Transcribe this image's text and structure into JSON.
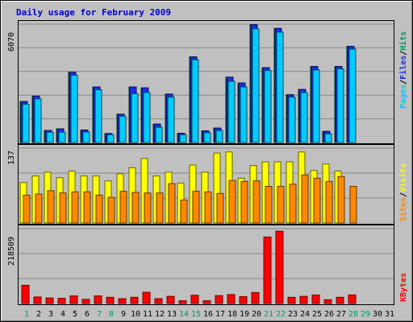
{
  "chart_data": [
    {
      "type": "bar",
      "title": "Daily usage for February 2009",
      "categories": [
        "1",
        "2",
        "3",
        "4",
        "5",
        "6",
        "7",
        "8",
        "9",
        "10",
        "11",
        "12",
        "13",
        "14",
        "15",
        "16",
        "17",
        "18",
        "19",
        "20",
        "21",
        "22",
        "23",
        "24",
        "25",
        "26",
        "27",
        "28",
        "29",
        "30",
        "31"
      ],
      "weekend_days": [
        "1",
        "7",
        "8",
        "14",
        "15",
        "21",
        "22",
        "28",
        "29"
      ],
      "y_max_label": "6070",
      "ymax": 6070,
      "legend": [
        {
          "text": "Pages",
          "color": "#00ccff"
        },
        {
          "text": "Files",
          "color": "#1a2ee6"
        },
        {
          "text": "Hits",
          "color": "#009966"
        }
      ],
      "series": [
        {
          "name": "Hits",
          "color": "#009966",
          "values": [
            2100,
            2380,
            620,
            700,
            3600,
            640,
            2850,
            460,
            1450,
            2850,
            2800,
            940,
            2480,
            470,
            4390,
            600,
            740,
            3350,
            3050,
            6040,
            3840,
            5850,
            2450,
            2720,
            3900,
            570,
            3900,
            4930,
            0,
            0,
            0
          ]
        },
        {
          "name": "Files",
          "color": "#1a2ee6",
          "values": [
            2100,
            2380,
            620,
            700,
            3600,
            640,
            2850,
            460,
            1450,
            2850,
            2800,
            940,
            2480,
            470,
            4390,
            600,
            740,
            3350,
            3050,
            6040,
            3840,
            5850,
            2450,
            2720,
            3900,
            570,
            3900,
            4930,
            0,
            0,
            0
          ]
        },
        {
          "name": "Pages",
          "color": "#00ccff",
          "values": [
            1960,
            2240,
            530,
            530,
            3450,
            540,
            2700,
            400,
            1350,
            2500,
            2560,
            780,
            2330,
            400,
            4240,
            500,
            610,
            3140,
            2850,
            5830,
            3690,
            5660,
            2330,
            2560,
            3720,
            440,
            3780,
            4790,
            0,
            0,
            0
          ]
        }
      ]
    },
    {
      "type": "bar",
      "y_max_label": "137",
      "ymax": 137,
      "legend": [
        {
          "text": "Sites",
          "color": "#ff8800"
        },
        {
          "text": "Visits",
          "color": "#ffff00"
        }
      ],
      "series": [
        {
          "name": "Visits",
          "color": "#ffff00",
          "values": [
            74,
            86,
            93,
            83,
            95,
            86,
            86,
            77,
            90,
            101,
            118,
            86,
            93,
            73,
            106,
            93,
            128,
            130,
            82,
            105,
            112,
            112,
            112,
            130,
            96,
            108,
            95,
            0,
            0,
            0,
            0
          ]
        },
        {
          "name": "Sites",
          "color": "#ff8800",
          "values": [
            51,
            53,
            59,
            55,
            57,
            57,
            51,
            47,
            58,
            56,
            55,
            55,
            72,
            42,
            58,
            57,
            54,
            78,
            76,
            77,
            67,
            67,
            71,
            88,
            82,
            76,
            85,
            67,
            0,
            0,
            0
          ]
        }
      ]
    },
    {
      "type": "bar",
      "y_max_label": "218509",
      "ymax": 218509,
      "legend": [
        {
          "text": "KBytes",
          "color": "#ff0000"
        }
      ],
      "series": [
        {
          "name": "KBytes",
          "color": "#ff0000",
          "values": [
            53000,
            19000,
            16000,
            15000,
            22000,
            12000,
            22000,
            18000,
            14000,
            18000,
            33000,
            14000,
            21000,
            8000,
            24000,
            8000,
            23000,
            26000,
            20000,
            32000,
            194000,
            211000,
            18000,
            21000,
            25000,
            11000,
            18000,
            25000,
            0,
            0,
            0
          ]
        }
      ]
    }
  ]
}
